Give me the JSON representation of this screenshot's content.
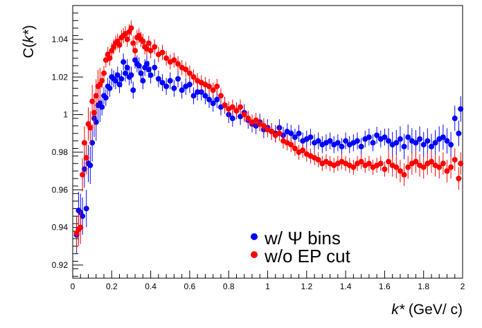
{
  "chart_data": {
    "type": "scatter",
    "xlabel": {
      "main": "k*",
      "unit": " (GeV/ c)"
    },
    "ylabel": {
      "prefix": "C(",
      "var": "k*",
      "suffix": ")"
    },
    "xlim": [
      0,
      2
    ],
    "ylim": [
      0.913,
      1.058
    ],
    "x_ticks": [
      "0",
      "0.2",
      "0.4",
      "0.6",
      "0.8",
      "1",
      "1.2",
      "1.4",
      "1.6",
      "1.8",
      "2"
    ],
    "y_ticks": [
      "0.92",
      "0.94",
      "0.96",
      "0.98",
      "1",
      "1.02",
      "1.04"
    ],
    "grid": false,
    "legend_position": "bottom-center",
    "series": [
      {
        "name": "w/ Ψ bins",
        "color": "#0000ff",
        "error_typical": 0.0045,
        "x": [
          0.02,
          0.03,
          0.04,
          0.05,
          0.06,
          0.07,
          0.08,
          0.09,
          0.1,
          0.11,
          0.12,
          0.13,
          0.14,
          0.15,
          0.16,
          0.17,
          0.18,
          0.19,
          0.2,
          0.21,
          0.22,
          0.23,
          0.24,
          0.25,
          0.26,
          0.27,
          0.28,
          0.29,
          0.3,
          0.31,
          0.32,
          0.33,
          0.34,
          0.35,
          0.36,
          0.37,
          0.38,
          0.39,
          0.4,
          0.42,
          0.44,
          0.46,
          0.48,
          0.5,
          0.52,
          0.54,
          0.56,
          0.58,
          0.6,
          0.62,
          0.64,
          0.66,
          0.68,
          0.7,
          0.72,
          0.74,
          0.76,
          0.78,
          0.8,
          0.82,
          0.84,
          0.86,
          0.88,
          0.9,
          0.92,
          0.94,
          0.96,
          0.98,
          1.0,
          1.02,
          1.04,
          1.06,
          1.08,
          1.1,
          1.12,
          1.14,
          1.16,
          1.18,
          1.2,
          1.22,
          1.24,
          1.26,
          1.28,
          1.3,
          1.32,
          1.34,
          1.36,
          1.38,
          1.4,
          1.42,
          1.44,
          1.46,
          1.48,
          1.5,
          1.52,
          1.54,
          1.56,
          1.58,
          1.6,
          1.62,
          1.64,
          1.66,
          1.68,
          1.7,
          1.72,
          1.74,
          1.76,
          1.78,
          1.8,
          1.82,
          1.84,
          1.86,
          1.88,
          1.9,
          1.92,
          1.94,
          1.96,
          1.98,
          1.99
        ],
        "y": [
          0.936,
          0.949,
          0.948,
          0.946,
          0.971,
          0.95,
          0.974,
          0.973,
          0.985,
          0.998,
          0.996,
          1.005,
          1.006,
          1.004,
          1.01,
          1.009,
          1.015,
          1.014,
          1.02,
          1.019,
          1.018,
          1.021,
          1.016,
          1.019,
          1.028,
          1.022,
          1.025,
          1.02,
          1.021,
          1.013,
          1.029,
          1.027,
          1.026,
          1.022,
          1.018,
          1.025,
          1.027,
          1.024,
          1.021,
          1.025,
          1.019,
          1.017,
          1.015,
          1.018,
          1.014,
          1.019,
          1.013,
          1.015,
          1.016,
          1.01,
          1.012,
          1.012,
          1.01,
          1.008,
          1.006,
          1.008,
          1.004,
          1.005,
          1.0,
          0.998,
          1.002,
          0.999,
          1.001,
          0.997,
          0.995,
          0.994,
          0.996,
          0.992,
          0.993,
          0.991,
          0.99,
          0.993,
          0.989,
          0.991,
          0.99,
          0.988,
          0.99,
          0.986,
          0.987,
          0.988,
          0.985,
          0.986,
          0.984,
          0.985,
          0.986,
          0.984,
          0.985,
          0.983,
          0.986,
          0.984,
          0.985,
          0.986,
          0.983,
          0.987,
          0.988,
          0.985,
          0.989,
          0.987,
          0.988,
          0.986,
          0.984,
          0.985,
          0.987,
          0.983,
          0.988,
          0.986,
          0.985,
          0.987,
          0.984,
          0.986,
          0.983,
          0.985,
          0.987,
          0.988,
          0.986,
          0.984,
          0.998,
          0.99,
          1.003
        ]
      },
      {
        "name": "w/o EP cut",
        "color": "#ff0000",
        "error_typical": 0.004,
        "x": [
          0.02,
          0.03,
          0.04,
          0.05,
          0.06,
          0.07,
          0.08,
          0.09,
          0.1,
          0.11,
          0.12,
          0.13,
          0.14,
          0.15,
          0.16,
          0.17,
          0.18,
          0.19,
          0.2,
          0.21,
          0.22,
          0.23,
          0.24,
          0.25,
          0.26,
          0.27,
          0.28,
          0.29,
          0.3,
          0.31,
          0.32,
          0.33,
          0.34,
          0.35,
          0.36,
          0.37,
          0.38,
          0.39,
          0.4,
          0.42,
          0.44,
          0.46,
          0.48,
          0.5,
          0.52,
          0.54,
          0.56,
          0.58,
          0.6,
          0.62,
          0.64,
          0.66,
          0.68,
          0.7,
          0.72,
          0.74,
          0.76,
          0.78,
          0.8,
          0.82,
          0.84,
          0.86,
          0.88,
          0.9,
          0.92,
          0.94,
          0.96,
          0.98,
          1.0,
          1.02,
          1.04,
          1.06,
          1.08,
          1.1,
          1.12,
          1.14,
          1.16,
          1.18,
          1.2,
          1.22,
          1.24,
          1.26,
          1.28,
          1.3,
          1.32,
          1.34,
          1.36,
          1.38,
          1.4,
          1.42,
          1.44,
          1.46,
          1.48,
          1.5,
          1.52,
          1.54,
          1.56,
          1.58,
          1.6,
          1.62,
          1.64,
          1.66,
          1.68,
          1.7,
          1.72,
          1.74,
          1.76,
          1.78,
          1.8,
          1.82,
          1.84,
          1.86,
          1.88,
          1.9,
          1.92,
          1.94,
          1.96,
          1.98,
          1.99
        ],
        "y": [
          0.937,
          0.939,
          0.94,
          0.968,
          0.985,
          0.977,
          0.995,
          0.993,
          1.007,
          1.001,
          1.01,
          1.015,
          1.016,
          1.018,
          1.022,
          1.029,
          1.032,
          1.03,
          1.034,
          1.036,
          1.038,
          1.039,
          1.037,
          1.041,
          1.042,
          1.043,
          1.04,
          1.044,
          1.046,
          1.038,
          1.034,
          1.041,
          1.042,
          1.04,
          1.039,
          1.036,
          1.035,
          1.038,
          1.034,
          1.036,
          1.032,
          1.033,
          1.03,
          1.028,
          1.029,
          1.027,
          1.025,
          1.024,
          1.022,
          1.02,
          1.018,
          1.017,
          1.016,
          1.015,
          1.013,
          1.015,
          1.01,
          1.005,
          1.003,
          1.004,
          1.002,
          1.004,
          1.0,
          0.998,
          0.996,
          0.997,
          0.995,
          0.994,
          0.992,
          0.991,
          0.989,
          0.99,
          0.986,
          0.985,
          0.984,
          0.982,
          0.98,
          0.981,
          0.979,
          0.978,
          0.977,
          0.976,
          0.974,
          0.975,
          0.974,
          0.973,
          0.974,
          0.975,
          0.974,
          0.973,
          0.972,
          0.974,
          0.975,
          0.973,
          0.974,
          0.972,
          0.973,
          0.974,
          0.971,
          0.975,
          0.973,
          0.972,
          0.97,
          0.968,
          0.972,
          0.974,
          0.975,
          0.973,
          0.972,
          0.974,
          0.975,
          0.973,
          0.972,
          0.974,
          0.97,
          0.972,
          0.976,
          0.966,
          0.974
        ]
      }
    ]
  }
}
